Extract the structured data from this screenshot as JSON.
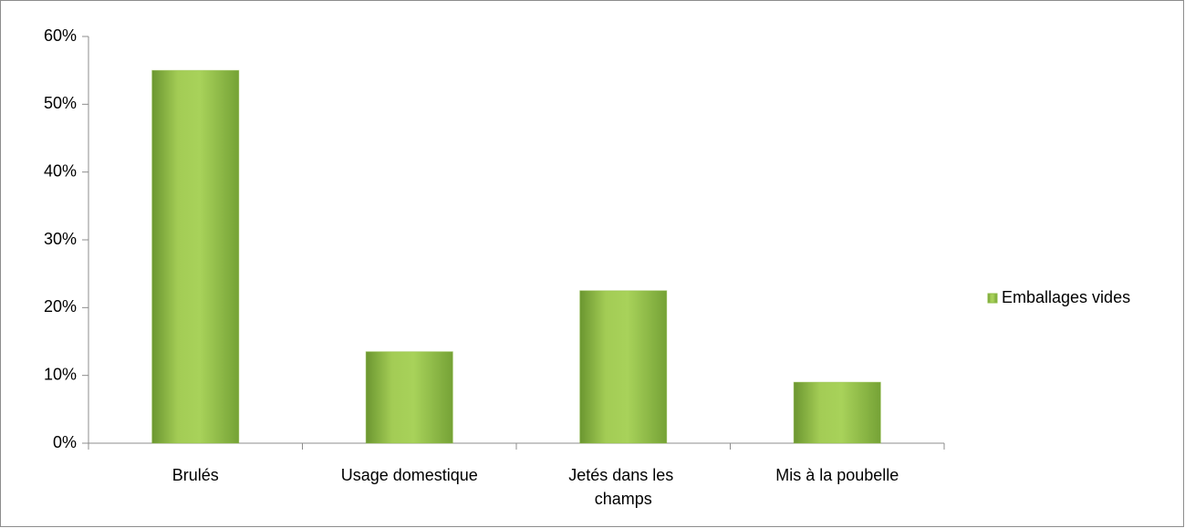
{
  "chart_data": {
    "type": "bar",
    "categories": [
      "Brulés",
      "Usage domestique",
      "Jetés dans les champs",
      "Mis à la poubelle"
    ],
    "series": [
      {
        "name": "Emballages vides",
        "color": "#8fbc45",
        "values": [
          55,
          13.5,
          22.5,
          9
        ]
      }
    ],
    "ylim": [
      0,
      60
    ],
    "yticks": [
      {
        "value": 0,
        "label": "0%"
      },
      {
        "value": 10,
        "label": "10%"
      },
      {
        "value": 20,
        "label": "20%"
      },
      {
        "value": 30,
        "label": "30%"
      },
      {
        "value": 40,
        "label": "40%"
      },
      {
        "value": 50,
        "label": "50%"
      },
      {
        "value": 60,
        "label": "60%"
      }
    ],
    "grid": false,
    "legend": "right"
  }
}
